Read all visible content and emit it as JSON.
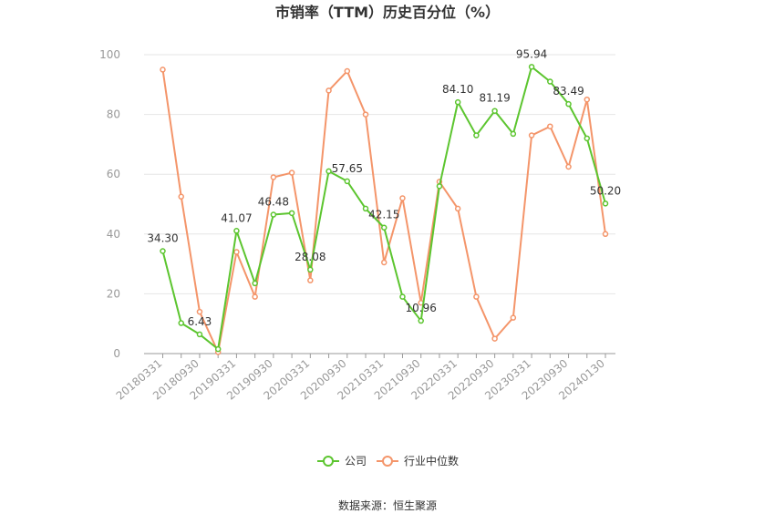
{
  "chart_data": {
    "type": "line",
    "title": "市销率（TTM）历史百分位（%）",
    "xlabel": "",
    "ylabel": "",
    "ylim": [
      0,
      100
    ],
    "yticks": [
      0,
      20,
      40,
      60,
      80,
      100
    ],
    "grid": true,
    "legend_position": "bottom",
    "x": [
      "20180331",
      "20180630",
      "20180930",
      "20181231",
      "20190331",
      "20190630",
      "20190930",
      "20191231",
      "20200331",
      "20200630",
      "20200930",
      "20201231",
      "20210331",
      "20210630",
      "20210930",
      "20211231",
      "20220331",
      "20220630",
      "20220930",
      "20221231",
      "20230331",
      "20230630",
      "20230930",
      "20231231",
      "20240130"
    ],
    "x_tick_labels": [
      "20180331",
      "20180930",
      "20190331",
      "20190930",
      "20200331",
      "20200930",
      "20210331",
      "20210930",
      "20220331",
      "20220930",
      "20230331",
      "20230930",
      "20240130"
    ],
    "series": [
      {
        "name": "公司",
        "color": "#5cc52f",
        "values": [
          34.3,
          10.2,
          6.43,
          1.5,
          41.07,
          23.5,
          46.48,
          47.0,
          28.08,
          61.0,
          57.65,
          48.5,
          42.15,
          19.0,
          10.96,
          56.0,
          84.1,
          73.0,
          81.19,
          73.5,
          95.94,
          91.0,
          83.49,
          72.0,
          50.2
        ],
        "labels": {
          "0": "34.30",
          "2": "6.43",
          "4": "41.07",
          "6": "46.48",
          "8": "28.08",
          "10": "57.65",
          "12": "42.15",
          "14": "10.96",
          "16": "84.10",
          "18": "81.19",
          "20": "95.94",
          "22": "83.49",
          "24": "50.20"
        }
      },
      {
        "name": "行业中位数",
        "color": "#f4956a",
        "values": [
          95.0,
          52.5,
          14.0,
          0.5,
          34.0,
          19.0,
          59.0,
          60.5,
          24.5,
          88.0,
          94.5,
          80.0,
          30.5,
          52.0,
          17.0,
          57.5,
          48.5,
          19.0,
          5.0,
          12.0,
          73.0,
          76.0,
          62.5,
          85.0,
          40.0
        ]
      }
    ]
  },
  "source": "数据来源：恒生聚源"
}
